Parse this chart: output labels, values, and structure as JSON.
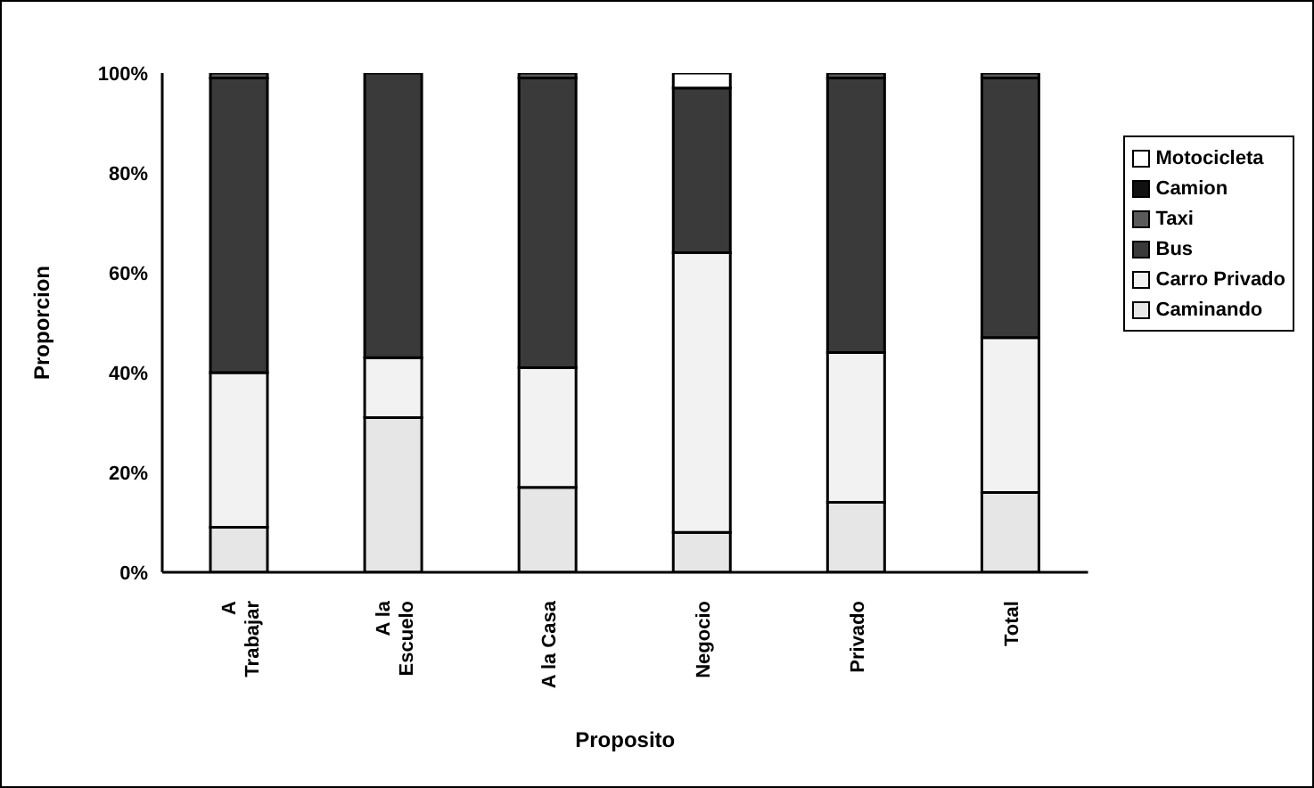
{
  "chart_data": {
    "type": "bar",
    "stacked": true,
    "xlabel": "Proposito",
    "ylabel": "Proporcion",
    "categories": [
      "A Trabajar",
      "A la Escuelo",
      "A la Casa",
      "Negocio",
      "Privado",
      "Total"
    ],
    "series": [
      {
        "name": "Caminando",
        "color": "#e6e6e6",
        "values": [
          9,
          31,
          17,
          8,
          14,
          16
        ]
      },
      {
        "name": "Carro Privado",
        "color": "#f2f2f2",
        "values": [
          31,
          12,
          24,
          56,
          30,
          31
        ]
      },
      {
        "name": "Bus",
        "color": "#3a3a3a",
        "values": [
          59,
          57,
          58,
          33,
          55,
          52
        ]
      },
      {
        "name": "Taxi",
        "color": "#5a5a5a",
        "values": [
          1,
          0,
          1,
          0,
          1,
          1
        ]
      },
      {
        "name": "Camion",
        "color": "#111111",
        "values": [
          0,
          0,
          0,
          0,
          0,
          0
        ]
      },
      {
        "name": "Motocicleta",
        "color": "#ffffff",
        "values": [
          0,
          0,
          0,
          3,
          0,
          0
        ]
      }
    ],
    "ylim": [
      0,
      100
    ],
    "yticks": [
      {
        "value": 0,
        "label": "0%"
      },
      {
        "value": 20,
        "label": "20%"
      },
      {
        "value": 40,
        "label": "40%"
      },
      {
        "value": 60,
        "label": "60%"
      },
      {
        "value": 80,
        "label": "80%"
      },
      {
        "value": 100,
        "label": "100%"
      }
    ],
    "grid": false,
    "legend": "right"
  }
}
